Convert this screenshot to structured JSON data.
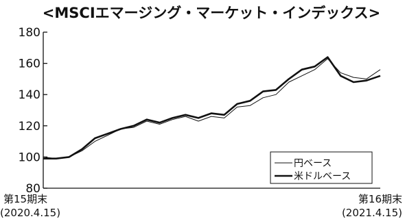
{
  "chart_data": {
    "type": "line",
    "title": "<MSCIエマージング・マーケット・インデックス>",
    "ylim": [
      80,
      180
    ],
    "yticks": [
      "80",
      "100",
      "120",
      "140",
      "160",
      "180"
    ],
    "xlim": [
      "2020-04-15",
      "2021-04-15"
    ],
    "x_start_label": {
      "line1": "第15期末",
      "line2": "(2020.4.15)"
    },
    "x_end_label": {
      "line1": "第16期末",
      "line2": "(2021.4.15)"
    },
    "grid": false,
    "legend_position": "bottom-right",
    "series": [
      {
        "name": "円ベース",
        "style": "thin",
        "x": [
          "2020-04-15",
          "2020-04-29",
          "2020-05-13",
          "2020-05-27",
          "2020-06-10",
          "2020-06-24",
          "2020-07-08",
          "2020-07-22",
          "2020-08-05",
          "2020-08-19",
          "2020-09-02",
          "2020-09-16",
          "2020-09-30",
          "2020-10-14",
          "2020-10-28",
          "2020-11-11",
          "2020-11-25",
          "2020-12-09",
          "2020-12-23",
          "2021-01-06",
          "2021-01-20",
          "2021-02-03",
          "2021-02-17",
          "2021-03-03",
          "2021-03-17",
          "2021-03-31",
          "2021-04-15"
        ],
        "values": [
          100,
          99,
          100,
          104,
          110,
          114,
          118,
          119,
          123,
          121,
          124,
          126,
          123,
          126,
          125,
          132,
          133,
          138,
          140,
          148,
          152,
          156,
          163,
          154,
          151,
          150,
          156
        ]
      },
      {
        "name": "米ドルベース",
        "style": "thick",
        "x": [
          "2020-04-15",
          "2020-04-29",
          "2020-05-13",
          "2020-05-27",
          "2020-06-10",
          "2020-06-24",
          "2020-07-08",
          "2020-07-22",
          "2020-08-05",
          "2020-08-19",
          "2020-09-02",
          "2020-09-16",
          "2020-09-30",
          "2020-10-14",
          "2020-10-28",
          "2020-11-11",
          "2020-11-25",
          "2020-12-09",
          "2020-12-23",
          "2021-01-06",
          "2021-01-20",
          "2021-02-03",
          "2021-02-17",
          "2021-03-03",
          "2021-03-17",
          "2021-03-31",
          "2021-04-15"
        ],
        "values": [
          99,
          99,
          100,
          105,
          112,
          115,
          118,
          120,
          124,
          122,
          125,
          127,
          125,
          128,
          127,
          134,
          136,
          142,
          143,
          150,
          156,
          158,
          164,
          152,
          148,
          149,
          152
        ]
      }
    ]
  }
}
